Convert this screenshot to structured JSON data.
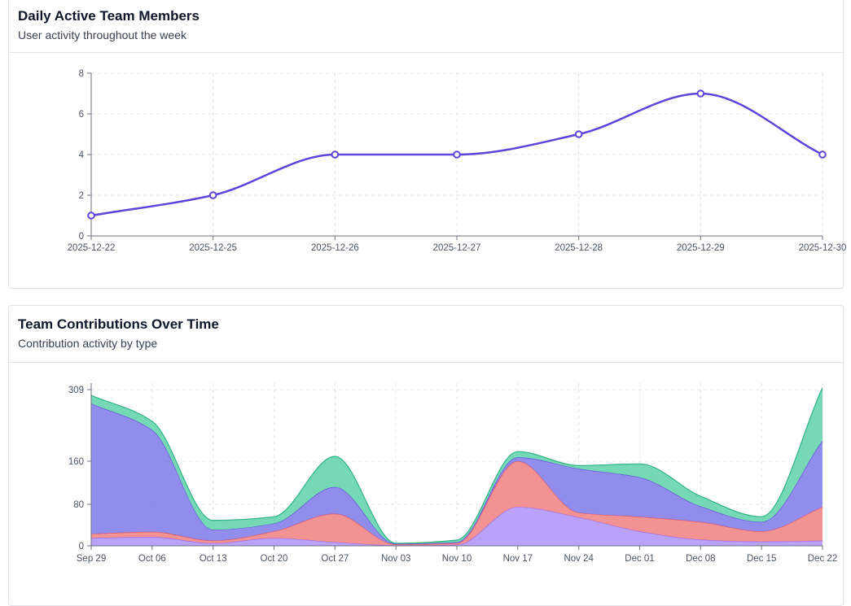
{
  "chart_data": [
    {
      "type": "line",
      "title": "Daily Active Team Members",
      "subtitle": "User activity throughout the week",
      "x": [
        "2025-12-22",
        "2025-12-25",
        "2025-12-26",
        "2025-12-27",
        "2025-12-28",
        "2025-12-29",
        "2025-12-30"
      ],
      "series": [
        {
          "values": [
            1,
            2,
            4,
            4,
            5,
            7,
            4
          ]
        }
      ],
      "ylim": [
        0,
        8
      ],
      "yticks": [
        0,
        2,
        4,
        6,
        8
      ],
      "grid": true,
      "color": "#5b45dc"
    },
    {
      "type": "area",
      "stacked": true,
      "title": "Team Contributions Over Time",
      "subtitle": "Contribution activity by type",
      "x": [
        "Sep 29",
        "Oct 06",
        "Oct 13",
        "Oct 20",
        "Oct 27",
        "Nov 03",
        "Nov 10",
        "Nov 17",
        "Nov 24",
        "Dec 01",
        "Dec 08",
        "Dec 15",
        "Dec 22"
      ],
      "yticks": [
        0,
        80,
        160,
        309
      ],
      "ylim": [
        0,
        309
      ],
      "grid": true,
      "series": [
        {
          "color": "#b69cfb",
          "values": [
            15,
            17,
            5,
            15,
            7,
            1,
            2,
            75,
            55,
            28,
            12,
            8,
            10
          ]
        },
        {
          "color": "#f28c8c",
          "values": [
            8,
            10,
            5,
            13,
            55,
            2,
            3,
            85,
            9,
            28,
            34,
            20,
            65
          ]
        },
        {
          "color": "#8b87ec",
          "values": [
            257,
            198,
            21,
            15,
            50,
            1,
            2,
            8,
            82,
            74,
            30,
            18,
            128
          ]
        },
        {
          "color": "#6fd7b1",
          "values": [
            17,
            18,
            18,
            13,
            58,
            1,
            4,
            12,
            6,
            25,
            19,
            10,
            110
          ]
        }
      ]
    }
  ]
}
